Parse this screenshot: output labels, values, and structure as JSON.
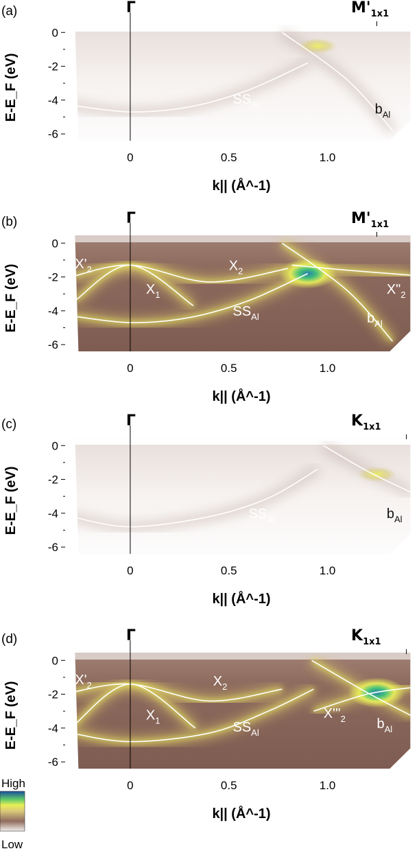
{
  "chart_data": [
    {
      "type": "heatmap",
      "panel_label": "(a)",
      "colormap": "light",
      "xlabel": "k|| (Å^-1)",
      "ylabel": "E-E_F (eV)",
      "xlim": [
        -0.33,
        1.45
      ],
      "ylim": [
        -6.4,
        0.7
      ],
      "xticks": [
        {
          "v": 0,
          "l": "0"
        },
        {
          "v": 0.5,
          "l": "0.5"
        },
        {
          "v": 1.0,
          "l": "1.0"
        }
      ],
      "yticks": [
        {
          "v": 0,
          "l": "0"
        },
        {
          "v": -2,
          "l": "-2"
        },
        {
          "v": -4,
          "l": "-4"
        },
        {
          "v": -6,
          "l": "-6"
        }
      ],
      "symmetry_points": [
        {
          "k": 0,
          "label": "Γ"
        },
        {
          "k": 1.25,
          "label": "M'",
          "sub": "1x1"
        }
      ],
      "bands": [
        {
          "name": "SS_Al",
          "points": [
            [
              -0.3,
              -4.3
            ],
            [
              0,
              -4.7
            ],
            [
              0.3,
              -4.4
            ],
            [
              0.6,
              -3.4
            ],
            [
              0.9,
              -1.8
            ]
          ]
        },
        {
          "name": "b_Al",
          "points": [
            [
              0.77,
              0.0
            ],
            [
              1.1,
              -2.8
            ],
            [
              1.33,
              -5.8
            ]
          ]
        }
      ],
      "labels": [
        {
          "text": "SS",
          "sub": "Al",
          "k": 0.52,
          "e": -4.2,
          "color": "white"
        },
        {
          "text": "b",
          "sub": "Al",
          "k": 1.24,
          "e": -4.8,
          "color": "dark"
        }
      ]
    },
    {
      "type": "heatmap",
      "panel_label": "(b)",
      "colormap": "dark",
      "xlabel": "k|| (Å^-1)",
      "ylabel": "E-E_F (eV)",
      "xlim": [
        -0.33,
        1.45
      ],
      "ylim": [
        -6.4,
        0.7
      ],
      "xticks": [
        {
          "v": 0,
          "l": "0"
        },
        {
          "v": 0.5,
          "l": "0.5"
        },
        {
          "v": 1.0,
          "l": "1.0"
        }
      ],
      "yticks": [
        {
          "v": 0,
          "l": "0"
        },
        {
          "v": -2,
          "l": "-2"
        },
        {
          "v": -4,
          "l": "-4"
        },
        {
          "v": -6,
          "l": "-6"
        }
      ],
      "symmetry_points": [
        {
          "k": 0,
          "label": "Γ"
        },
        {
          "k": 1.25,
          "label": "M'",
          "sub": "1x1"
        }
      ],
      "bands": [
        {
          "name": "SS_Al",
          "points": [
            [
              -0.3,
              -4.3
            ],
            [
              0,
              -4.7
            ],
            [
              0.3,
              -4.4
            ],
            [
              0.6,
              -3.4
            ],
            [
              0.9,
              -1.8
            ]
          ]
        },
        {
          "name": "b_Al",
          "points": [
            [
              0.77,
              0.0
            ],
            [
              1.1,
              -2.8
            ],
            [
              1.33,
              -5.8
            ]
          ]
        },
        {
          "name": "X_2",
          "points": [
            [
              -0.3,
              -2.0
            ],
            [
              0,
              -1.3
            ],
            [
              0.4,
              -2.3
            ],
            [
              0.8,
              -1.5
            ]
          ]
        },
        {
          "name": "X_1",
          "points": [
            [
              -0.28,
              -3.4
            ],
            [
              0,
              -1.3
            ],
            [
              0.32,
              -3.7
            ]
          ]
        },
        {
          "name": "X''_2",
          "points": [
            [
              0.82,
              -1.3
            ],
            [
              1.1,
              -1.6
            ],
            [
              1.43,
              -1.9
            ]
          ]
        }
      ],
      "labels": [
        {
          "text": "X'",
          "sub": "2",
          "k": -0.28,
          "e": -1.5,
          "color": "white"
        },
        {
          "text": "X",
          "sub": "1",
          "k": 0.08,
          "e": -3.0,
          "color": "white"
        },
        {
          "text": "X",
          "sub": "2",
          "k": 0.5,
          "e": -1.6,
          "color": "white"
        },
        {
          "text": "SS",
          "sub": "Al",
          "k": 0.52,
          "e": -4.3,
          "color": "white"
        },
        {
          "text": "X\"",
          "sub": "2",
          "k": 1.3,
          "e": -3.0,
          "color": "white"
        },
        {
          "text": "b",
          "sub": "Al",
          "k": 1.2,
          "e": -4.7,
          "color": "white"
        }
      ]
    },
    {
      "type": "heatmap",
      "panel_label": "(c)",
      "colormap": "light",
      "xlabel": "k|| (Å^-1)",
      "ylabel": "E-E_F (eV)",
      "xlim": [
        -0.33,
        1.45
      ],
      "ylim": [
        -6.4,
        0.7
      ],
      "xticks": [
        {
          "v": 0,
          "l": "0"
        },
        {
          "v": 0.5,
          "l": "0.5"
        },
        {
          "v": 1.0,
          "l": "1.0"
        }
      ],
      "yticks": [
        {
          "v": 0,
          "l": "0"
        },
        {
          "v": -2,
          "l": "-2"
        },
        {
          "v": -4,
          "l": "-4"
        },
        {
          "v": -6,
          "l": "-6"
        }
      ],
      "symmetry_points": [
        {
          "k": 0,
          "label": "Γ"
        },
        {
          "k": 1.4,
          "label": "K",
          "sub": "1x1"
        }
      ],
      "bands": [
        {
          "name": "SS_Al",
          "points": [
            [
              -0.3,
              -4.2
            ],
            [
              0,
              -4.8
            ],
            [
              0.4,
              -4.2
            ],
            [
              0.7,
              -3.1
            ],
            [
              0.95,
              -1.4
            ]
          ]
        },
        {
          "name": "b_Al",
          "points": [
            [
              0.98,
              0.0
            ],
            [
              1.2,
              -1.5
            ],
            [
              1.43,
              -2.8
            ]
          ]
        }
      ],
      "labels": [
        {
          "text": "SS",
          "sub": "Al",
          "k": 0.6,
          "e": -4.3,
          "color": "white"
        },
        {
          "text": "b",
          "sub": "Al",
          "k": 1.3,
          "e": -4.3,
          "color": "dark"
        }
      ]
    },
    {
      "type": "heatmap",
      "panel_label": "(d)",
      "colormap": "dark",
      "xlabel": "k|| (Å^-1)",
      "ylabel": "E-E_F (eV)",
      "xlim": [
        -0.33,
        1.45
      ],
      "ylim": [
        -6.4,
        0.7
      ],
      "xticks": [
        {
          "v": 0,
          "l": "0"
        },
        {
          "v": 0.5,
          "l": "0.5"
        },
        {
          "v": 1.0,
          "l": "1.0"
        }
      ],
      "yticks": [
        {
          "v": 0,
          "l": "0"
        },
        {
          "v": -2,
          "l": "-2"
        },
        {
          "v": -4,
          "l": "-4"
        },
        {
          "v": -6,
          "l": "-6"
        }
      ],
      "symmetry_points": [
        {
          "k": 0,
          "label": "Γ"
        },
        {
          "k": 1.4,
          "label": "K",
          "sub": "1x1"
        }
      ],
      "bands": [
        {
          "name": "SS_Al",
          "points": [
            [
              -0.3,
              -4.3
            ],
            [
              0,
              -4.8
            ],
            [
              0.4,
              -4.3
            ],
            [
              0.7,
              -3.0
            ],
            [
              0.93,
              -1.7
            ]
          ]
        },
        {
          "name": "b_Al",
          "points": [
            [
              0.92,
              0.0
            ],
            [
              1.2,
              -1.9
            ],
            [
              1.43,
              -3.3
            ]
          ]
        },
        {
          "name": "X_2",
          "points": [
            [
              -0.3,
              -1.9
            ],
            [
              0,
              -1.4
            ],
            [
              0.4,
              -2.4
            ],
            [
              0.77,
              -1.7
            ]
          ]
        },
        {
          "name": "X_1",
          "points": [
            [
              -0.3,
              -4.0
            ],
            [
              0,
              -1.4
            ],
            [
              0.33,
              -4.0
            ]
          ]
        },
        {
          "name": "X'''_2",
          "points": [
            [
              0.93,
              -3.0
            ],
            [
              1.2,
              -2.0
            ],
            [
              1.43,
              -1.6
            ]
          ]
        }
      ],
      "labels": [
        {
          "text": "X'",
          "sub": "2",
          "k": -0.28,
          "e": -1.4,
          "color": "white"
        },
        {
          "text": "X",
          "sub": "1",
          "k": 0.08,
          "e": -3.5,
          "color": "white"
        },
        {
          "text": "X",
          "sub": "2",
          "k": 0.42,
          "e": -1.5,
          "color": "white"
        },
        {
          "text": "SS",
          "sub": "Al",
          "k": 0.52,
          "e": -4.2,
          "color": "white"
        },
        {
          "text": "X'''",
          "sub": "2",
          "k": 0.98,
          "e": -3.4,
          "color": "white"
        },
        {
          "text": "b",
          "sub": "Al",
          "k": 1.25,
          "e": -4.0,
          "color": "white"
        }
      ]
    }
  ],
  "colorbar": {
    "high_label": "High",
    "low_label": "Low",
    "stops": [
      "#f4f0ee",
      "#a88b82",
      "#8e6a5d",
      "#d6c275",
      "#e8ee56",
      "#5cc66c",
      "#1b8aa6",
      "#1a4fa0"
    ]
  }
}
